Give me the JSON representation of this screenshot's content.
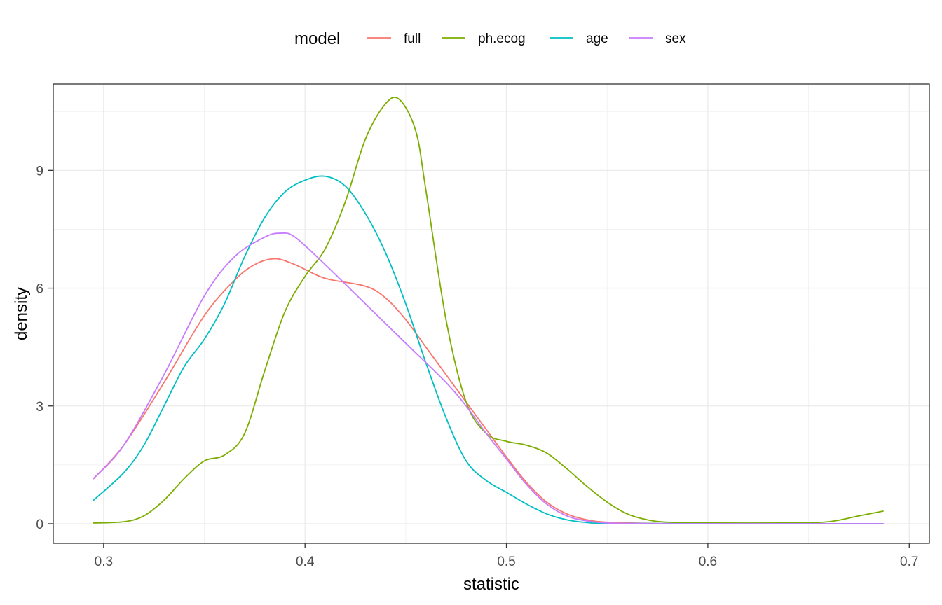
{
  "chart_data": {
    "type": "line",
    "xlabel": "statistic",
    "ylabel": "density",
    "xlim": [
      0.275,
      0.71
    ],
    "ylim": [
      -0.5,
      11.2
    ],
    "x_ticks": [
      0.3,
      0.4,
      0.5,
      0.6,
      0.7
    ],
    "x_tick_labels": [
      "0.3",
      "0.4",
      "0.5",
      "0.6",
      "0.7"
    ],
    "y_ticks": [
      0,
      3,
      6,
      9
    ],
    "y_tick_labels": [
      "0",
      "3",
      "6",
      "9"
    ],
    "grid": true,
    "legend": {
      "title": "model",
      "placement": "top"
    },
    "series": [
      {
        "name": "full",
        "color": "#F8766D",
        "x": [
          0.295,
          0.31,
          0.33,
          0.35,
          0.365,
          0.375,
          0.385,
          0.395,
          0.41,
          0.43,
          0.44,
          0.45,
          0.46,
          0.47,
          0.48,
          0.49,
          0.5,
          0.51,
          0.52,
          0.53,
          0.54,
          0.55,
          0.57,
          0.6,
          0.687
        ],
        "y": [
          1.15,
          2.0,
          3.6,
          5.3,
          6.2,
          6.6,
          6.75,
          6.6,
          6.25,
          6.05,
          5.75,
          5.2,
          4.5,
          3.8,
          3.1,
          2.4,
          1.7,
          1.05,
          0.55,
          0.25,
          0.1,
          0.04,
          0.01,
          0.0,
          0.0
        ]
      },
      {
        "name": "ph.ecog",
        "color": "#7CAE00",
        "x": [
          0.295,
          0.31,
          0.32,
          0.33,
          0.34,
          0.35,
          0.36,
          0.37,
          0.38,
          0.39,
          0.4,
          0.41,
          0.42,
          0.43,
          0.44,
          0.447,
          0.455,
          0.46,
          0.47,
          0.48,
          0.49,
          0.5,
          0.51,
          0.52,
          0.53,
          0.54,
          0.55,
          0.56,
          0.57,
          0.58,
          0.6,
          0.64,
          0.66,
          0.675,
          0.687
        ],
        "y": [
          0.02,
          0.05,
          0.2,
          0.6,
          1.15,
          1.6,
          1.75,
          2.3,
          3.9,
          5.4,
          6.3,
          7.0,
          8.2,
          9.8,
          10.7,
          10.8,
          10.0,
          8.5,
          5.2,
          3.1,
          2.3,
          2.1,
          2.0,
          1.8,
          1.4,
          0.95,
          0.55,
          0.25,
          0.1,
          0.04,
          0.02,
          0.02,
          0.05,
          0.2,
          0.32
        ]
      },
      {
        "name": "age",
        "color": "#00BFC4",
        "x": [
          0.295,
          0.31,
          0.32,
          0.33,
          0.34,
          0.35,
          0.36,
          0.37,
          0.38,
          0.39,
          0.4,
          0.41,
          0.42,
          0.43,
          0.44,
          0.45,
          0.46,
          0.47,
          0.48,
          0.49,
          0.5,
          0.51,
          0.52,
          0.53,
          0.54,
          0.55,
          0.6,
          0.687
        ],
        "y": [
          0.6,
          1.3,
          2.0,
          3.0,
          4.0,
          4.7,
          5.6,
          6.8,
          7.8,
          8.45,
          8.75,
          8.85,
          8.6,
          7.9,
          6.9,
          5.6,
          4.1,
          2.7,
          1.6,
          1.1,
          0.8,
          0.5,
          0.25,
          0.1,
          0.03,
          0.01,
          0.0,
          0.0
        ]
      },
      {
        "name": "sex",
        "color": "#C77CFF",
        "x": [
          0.295,
          0.31,
          0.33,
          0.35,
          0.365,
          0.38,
          0.388,
          0.395,
          0.41,
          0.43,
          0.45,
          0.47,
          0.48,
          0.49,
          0.5,
          0.51,
          0.52,
          0.53,
          0.54,
          0.55,
          0.57,
          0.6,
          0.687
        ],
        "y": [
          1.15,
          2.0,
          3.8,
          5.8,
          6.8,
          7.3,
          7.4,
          7.3,
          6.6,
          5.6,
          4.6,
          3.6,
          3.0,
          2.3,
          1.65,
          1.0,
          0.5,
          0.2,
          0.07,
          0.02,
          0.0,
          0.0,
          0.0
        ]
      }
    ]
  }
}
